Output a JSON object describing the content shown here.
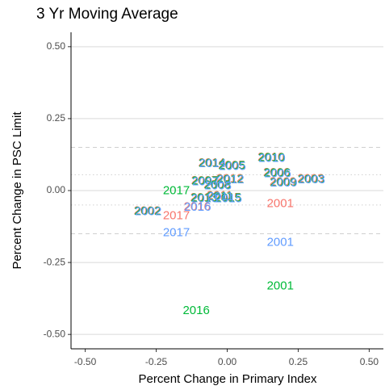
{
  "chart_data": {
    "type": "text-scatter",
    "title": "3 Yr Moving Average",
    "x_label": "Percent Change in Primary Index",
    "y_label": "Percent Change in PSC Limit",
    "xlim": [
      -0.55,
      0.55
    ],
    "ylim": [
      -0.55,
      0.55
    ],
    "xticks": [
      {
        "value": -0.5,
        "label": "-0.50"
      },
      {
        "value": -0.25,
        "label": "-0.25"
      },
      {
        "value": 0,
        "label": "0.00"
      },
      {
        "value": 0.25,
        "label": "0.25"
      },
      {
        "value": 0.5,
        "label": "0.50"
      }
    ],
    "yticks": [
      {
        "value": -0.5,
        "label": "-0.50"
      },
      {
        "value": -0.25,
        "label": "-0.25"
      },
      {
        "value": 0,
        "label": "0.00"
      },
      {
        "value": 0.25,
        "label": "0.25"
      },
      {
        "value": 0.5,
        "label": "0.50"
      }
    ],
    "grid": true,
    "hlines": [
      {
        "value": 0.15,
        "style": "dashed"
      },
      {
        "value": -0.15,
        "style": "dashed"
      },
      {
        "value": 0.055,
        "style": "dotted"
      },
      {
        "value": -0.05,
        "style": "dotted"
      }
    ],
    "series": [
      {
        "color": "#F8766D",
        "labels": [
          "2002",
          "2017",
          "2016",
          "2001",
          "2014",
          "2005",
          "2007",
          "2012",
          "2008",
          "2010",
          "2006",
          "2003",
          "2009",
          "2013",
          "2011",
          "2015"
        ],
        "x": [
          -0.282,
          -0.179,
          -0.106,
          0.187,
          -0.055,
          0.015,
          -0.08,
          0.009,
          -0.036,
          0.154,
          0.174,
          0.294,
          0.196,
          -0.083,
          -0.027,
          0.001
        ],
        "values": [
          -0.071,
          -0.088,
          -0.057,
          -0.046,
          0.096,
          0.087,
          0.034,
          0.04,
          0.02,
          0.115,
          0.062,
          0.04,
          0.029,
          -0.025,
          -0.019,
          -0.025
        ]
      },
      {
        "color": "#00BA38",
        "labels": [
          "2002",
          "2017",
          "2016",
          "2001",
          "2014",
          "2005",
          "2007",
          "2012",
          "2008",
          "2010",
          "2006",
          "2003",
          "2009",
          "2013",
          "2011",
          "2015"
        ],
        "x": [
          -0.28,
          -0.179,
          -0.109,
          0.187,
          -0.053,
          0.017,
          -0.078,
          0.011,
          -0.034,
          0.156,
          0.176,
          0.296,
          0.198,
          -0.081,
          -0.025,
          0.003
        ],
        "values": [
          -0.073,
          -0.001,
          -0.418,
          -0.332,
          0.094,
          0.085,
          0.032,
          0.038,
          0.018,
          0.113,
          0.06,
          0.038,
          0.027,
          -0.027,
          -0.021,
          -0.027
        ]
      },
      {
        "color": "#619CFF",
        "labels": [
          "2002",
          "2017",
          "2016",
          "2001",
          "2014",
          "2005",
          "2007",
          "2012",
          "2008",
          "2010",
          "2006",
          "2003",
          "2009",
          "2013",
          "2011",
          "2015"
        ],
        "x": [
          -0.278,
          -0.179,
          -0.104,
          0.187,
          -0.051,
          0.019,
          -0.076,
          0.013,
          -0.032,
          0.158,
          0.178,
          0.298,
          0.2,
          -0.079,
          -0.023,
          0.005
        ],
        "values": [
          -0.075,
          -0.147,
          -0.059,
          -0.181,
          0.092,
          0.083,
          0.03,
          0.036,
          0.016,
          0.111,
          0.058,
          0.036,
          0.025,
          -0.029,
          -0.023,
          -0.029
        ]
      }
    ]
  }
}
